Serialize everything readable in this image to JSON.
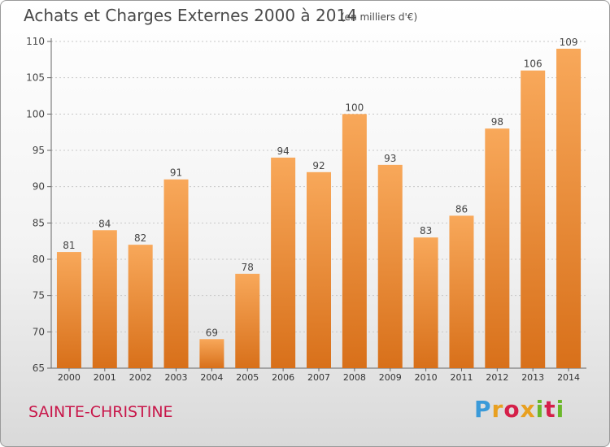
{
  "header": {
    "title": "Achats et Charges Externes 2000 à 2014",
    "unit": "(en milliers d'€)"
  },
  "footer": {
    "commune": "SAINTE-CHRISTINE",
    "logo_text": "Proxiti"
  },
  "colors": {
    "bar_light": "#f8a85a",
    "bar_dark": "#d8701a",
    "commune_text": "#c8174a"
  },
  "chart_data": {
    "type": "bar",
    "title": "Achats et Charges Externes 2000 à 2014",
    "subtitle": "(en milliers d'€)",
    "categories": [
      "2000",
      "2001",
      "2002",
      "2003",
      "2004",
      "2005",
      "2006",
      "2007",
      "2008",
      "2009",
      "2010",
      "2011",
      "2012",
      "2013",
      "2014"
    ],
    "values": [
      81,
      84,
      82,
      91,
      69,
      78,
      94,
      92,
      100,
      93,
      83,
      86,
      98,
      106,
      109
    ],
    "yticks": [
      65,
      70,
      75,
      80,
      85,
      90,
      95,
      100,
      105,
      110
    ],
    "ylim": [
      65,
      110
    ],
    "grid": true,
    "legend": "none"
  }
}
